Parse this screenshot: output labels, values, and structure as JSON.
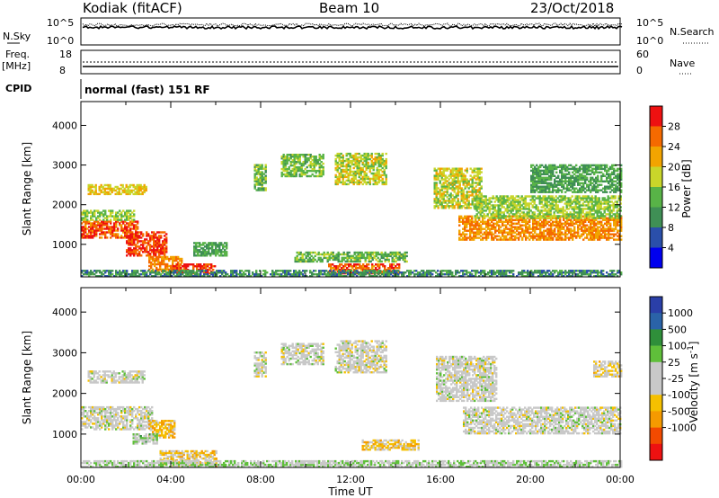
{
  "header": {
    "station": "Kodiak (fitACF)",
    "beam": "Beam 10",
    "date": "23/Oct/2018"
  },
  "panels": {
    "nsky": {
      "left_label": "N.Sky",
      "right_label": "N.Search",
      "left_ticks": [
        "10^5",
        "10^0"
      ],
      "right_ticks": [
        "10^5",
        "10^0"
      ]
    },
    "freq": {
      "left_label_1": "Freq.",
      "left_label_2": "[MHz]",
      "right_label": "Nave",
      "left_ticks": [
        "18",
        "8"
      ],
      "right_ticks": [
        "60",
        "0"
      ]
    },
    "cpid": {
      "label": "CPID",
      "text": "normal (fast) 151 RF"
    }
  },
  "colors": {
    "power": [
      "#0000ee",
      "#2a4faa",
      "#3f8f55",
      "#58b347",
      "#c9d62a",
      "#f2a400",
      "#f56a00",
      "#ee1111"
    ],
    "velocity": [
      "#ee1111",
      "#f24a00",
      "#f59a00",
      "#f5c000",
      "#c8c8c8",
      "#c8c8c8",
      "#5fbf3a",
      "#2f8f3a",
      "#2a63a8",
      "#2a3fa8"
    ]
  },
  "chart_data": [
    {
      "type": "heatmap",
      "name": "power",
      "ylabel": "Slant Range [km]",
      "colorbar_label": "Power [dB]",
      "ylim": [
        180,
        4600
      ],
      "xlim": [
        0,
        24
      ],
      "y_ticks": [
        1000,
        2000,
        3000,
        4000
      ],
      "colorbar_ticks": [
        "4",
        "8",
        "12",
        "16",
        "20",
        "24",
        "28"
      ],
      "clim": [
        0,
        32
      ],
      "regions": [
        {
          "t0": 0.0,
          "t1": 2.5,
          "r0": 1150,
          "r1": 1600,
          "v": 27
        },
        {
          "t0": 2.0,
          "t1": 3.8,
          "r0": 700,
          "r1": 1300,
          "v": 28
        },
        {
          "t0": 0.3,
          "t1": 2.9,
          "r0": 2250,
          "r1": 2500,
          "v": 20
        },
        {
          "t0": 0.0,
          "t1": 2.4,
          "r0": 1600,
          "r1": 1850,
          "v": 16
        },
        {
          "t0": 3.0,
          "t1": 4.5,
          "r0": 300,
          "r1": 700,
          "v": 24
        },
        {
          "t0": 4.0,
          "t1": 6.0,
          "r0": 250,
          "r1": 500,
          "v": 28
        },
        {
          "t0": 5.0,
          "t1": 6.5,
          "r0": 700,
          "r1": 1050,
          "v": 12
        },
        {
          "t0": 7.7,
          "t1": 8.2,
          "r0": 2350,
          "r1": 3000,
          "v": 14
        },
        {
          "t0": 8.9,
          "t1": 10.8,
          "r0": 2700,
          "r1": 3250,
          "v": 15
        },
        {
          "t0": 11.3,
          "t1": 13.6,
          "r0": 2500,
          "r1": 3300,
          "v": 18
        },
        {
          "t0": 9.5,
          "t1": 14.5,
          "r0": 550,
          "r1": 800,
          "v": 14
        },
        {
          "t0": 11.0,
          "t1": 14.2,
          "r0": 250,
          "r1": 480,
          "v": 27
        },
        {
          "t0": 15.7,
          "t1": 17.8,
          "r0": 1900,
          "r1": 2900,
          "v": 18
        },
        {
          "t0": 16.8,
          "t1": 24.0,
          "r0": 1100,
          "r1": 1700,
          "v": 24
        },
        {
          "t0": 17.5,
          "t1": 24.0,
          "r0": 1650,
          "r1": 2200,
          "v": 16
        },
        {
          "t0": 20.0,
          "t1": 24.0,
          "r0": 2300,
          "r1": 3000,
          "v": 12
        },
        {
          "t0": 0.0,
          "t1": 24.0,
          "r0": 180,
          "r1": 350,
          "v": 10
        }
      ]
    },
    {
      "type": "heatmap",
      "name": "velocity",
      "ylabel": "Slant Range [km]",
      "colorbar_label": "Velocity [m s^-1]",
      "ylim": [
        180,
        4600
      ],
      "xlim": [
        0,
        24
      ],
      "y_ticks": [
        1000,
        2000,
        3000,
        4000
      ],
      "colorbar_ticks": [
        "1000",
        "500",
        "100",
        "25",
        "-25",
        "-100",
        "-500",
        "-1000"
      ],
      "clim": [
        -1250,
        1250
      ],
      "regions": [
        {
          "t0": 0.0,
          "t1": 3.2,
          "r0": 1100,
          "r1": 1650,
          "v": 0
        },
        {
          "t0": 3.0,
          "t1": 4.2,
          "r0": 900,
          "r1": 1350,
          "v": -400
        },
        {
          "t0": 2.3,
          "t1": 3.4,
          "r0": 750,
          "r1": 1000,
          "v": 200
        },
        {
          "t0": 0.3,
          "t1": 2.8,
          "r0": 2250,
          "r1": 2550,
          "v": 10
        },
        {
          "t0": 3.5,
          "t1": 6.0,
          "r0": 200,
          "r1": 600,
          "v": -300
        },
        {
          "t0": 7.7,
          "t1": 8.2,
          "r0": 2400,
          "r1": 3000,
          "v": 5
        },
        {
          "t0": 8.9,
          "t1": 10.8,
          "r0": 2700,
          "r1": 3200,
          "v": 0
        },
        {
          "t0": 11.3,
          "t1": 13.6,
          "r0": 2500,
          "r1": 3300,
          "v": -10
        },
        {
          "t0": 12.5,
          "t1": 15.0,
          "r0": 600,
          "r1": 850,
          "v": -300
        },
        {
          "t0": 0.0,
          "t1": 24.0,
          "r0": 180,
          "r1": 350,
          "v": 150
        },
        {
          "t0": 15.8,
          "t1": 18.5,
          "r0": 1800,
          "r1": 2900,
          "v": 0
        },
        {
          "t0": 17.0,
          "t1": 24.0,
          "r0": 1000,
          "r1": 1650,
          "v": 0
        },
        {
          "t0": 22.8,
          "t1": 24.0,
          "r0": 2400,
          "r1": 2800,
          "v": -200
        }
      ]
    }
  ],
  "x_ticks": [
    "00:00",
    "04:00",
    "08:00",
    "12:00",
    "16:00",
    "20:00",
    "00:00"
  ],
  "xlabel": "Time UT"
}
